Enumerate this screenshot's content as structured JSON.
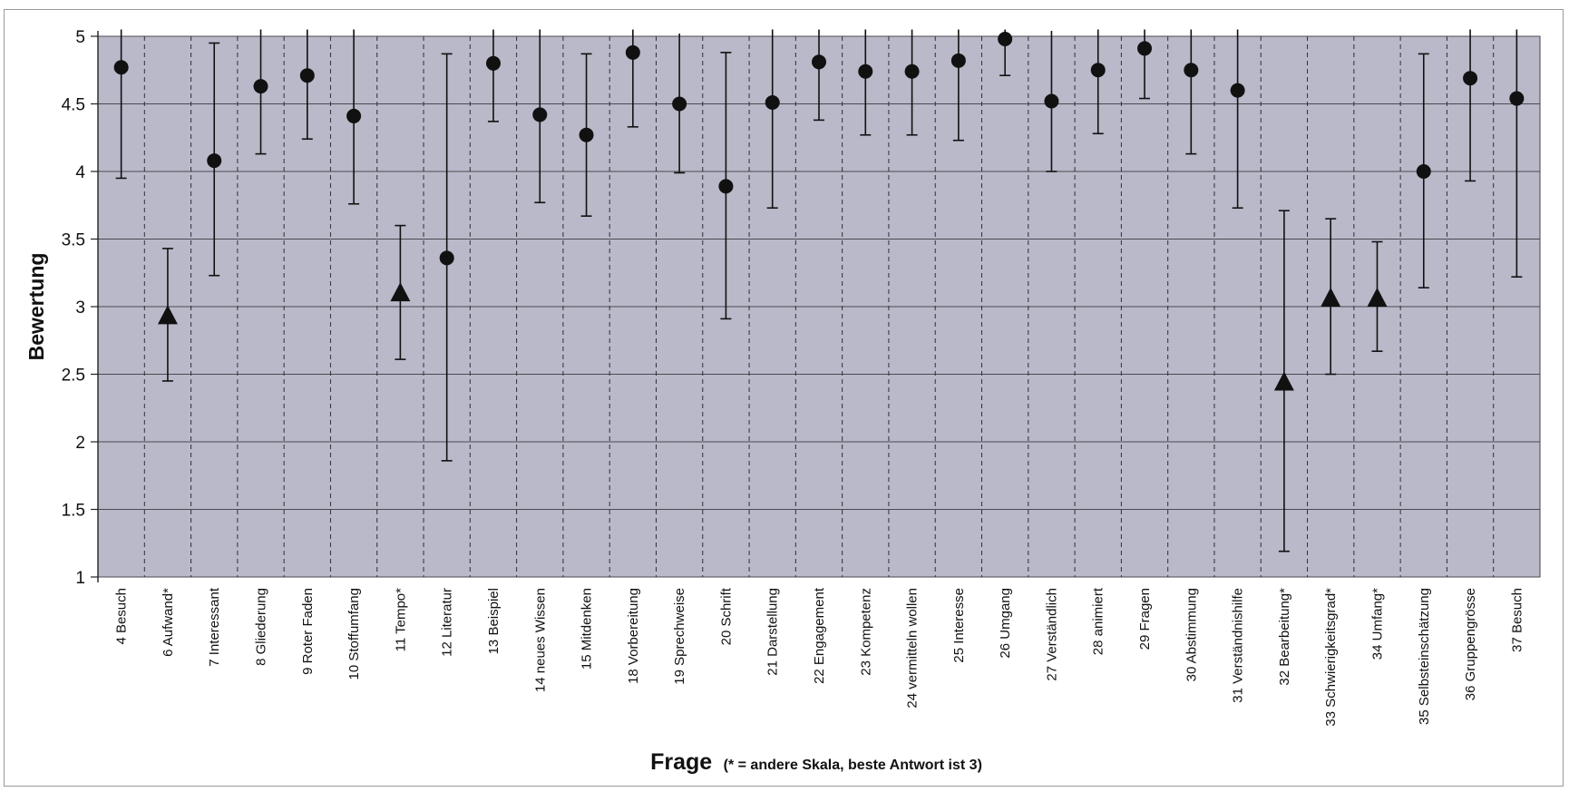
{
  "chart_data": {
    "type": "scatter",
    "ylabel": "Bewertung",
    "xlabel_main": "Frage",
    "xlabel_note": "(* = andere Skala, beste Antwort ist 3)",
    "ylim": [
      1,
      5
    ],
    "yticks": [
      "1",
      "1.5",
      "2",
      "2.5",
      "3",
      "3.5",
      "4",
      "4.5",
      "5"
    ],
    "grid": "horizontal lines and vertical dashed separators",
    "plot_background": "#b9b9c9",
    "marker_color": "#111111",
    "categories": [
      "4 Besuch",
      "6 Aufwand*",
      "7 Interessant",
      "8 Gliederung",
      "9 Roter Faden",
      "10 Stoffumfang",
      "11 Tempo*",
      "12 Literatur",
      "13 Beispiel",
      "14 neues Wissen",
      "15 Mitdenken",
      "18 Vorbereitung",
      "19 Sprechweise",
      "20 Schrift",
      "21 Darstellung",
      "22 Engagement",
      "23 Kompetenz",
      "24 vermitteln wollen",
      "25 Interesse",
      "26 Umgang",
      "27 Verständlich",
      "28 animiert",
      "29 Fragen",
      "30 Abstimmung",
      "31 Verständnishilfe",
      "32 Bearbeitung*",
      "33 Schwierigkeitsgrad*",
      "34 Umfang*",
      "35 Selbsteinschätzung",
      "36 Gruppengrösse",
      "37 Besuch"
    ],
    "series": [
      {
        "marker": "circle",
        "values": [
          4.77,
          null,
          4.08,
          4.63,
          4.71,
          4.41,
          null,
          3.36,
          4.8,
          4.42,
          4.27,
          4.88,
          4.5,
          3.89,
          4.51,
          4.81,
          4.74,
          4.74,
          4.82,
          4.98,
          4.52,
          4.75,
          4.91,
          4.75,
          4.6,
          null,
          null,
          null,
          4.0,
          4.69,
          4.54
        ],
        "upper": [
          5.05,
          null,
          4.95,
          5.05,
          5.05,
          5.05,
          null,
          4.87,
          5.05,
          5.05,
          4.87,
          5.05,
          5.02,
          4.88,
          5.05,
          5.05,
          5.05,
          5.05,
          5.05,
          5.05,
          5.04,
          5.05,
          5.05,
          5.05,
          5.05,
          null,
          null,
          null,
          4.87,
          5.05,
          5.05
        ],
        "lower": [
          3.95,
          null,
          3.23,
          4.13,
          4.24,
          3.76,
          null,
          1.86,
          4.37,
          3.77,
          3.67,
          4.33,
          3.99,
          2.91,
          3.73,
          4.38,
          4.27,
          4.27,
          4.23,
          4.71,
          4.0,
          4.28,
          4.54,
          4.13,
          3.73,
          null,
          null,
          null,
          3.14,
          3.93,
          3.22
        ]
      },
      {
        "marker": "triangle",
        "values": [
          null,
          2.93,
          null,
          null,
          null,
          null,
          3.1,
          null,
          null,
          null,
          null,
          null,
          null,
          null,
          null,
          null,
          null,
          null,
          null,
          null,
          null,
          null,
          null,
          null,
          null,
          2.44,
          3.06,
          3.06,
          null,
          null,
          null
        ],
        "upper": [
          null,
          3.43,
          null,
          null,
          null,
          null,
          3.6,
          null,
          null,
          null,
          null,
          null,
          null,
          null,
          null,
          null,
          null,
          null,
          null,
          null,
          null,
          null,
          null,
          null,
          null,
          3.71,
          3.65,
          3.48,
          null,
          null,
          null
        ],
        "lower": [
          null,
          2.45,
          null,
          null,
          null,
          null,
          2.61,
          null,
          null,
          null,
          null,
          null,
          null,
          null,
          null,
          null,
          null,
          null,
          null,
          null,
          null,
          null,
          null,
          null,
          null,
          1.19,
          2.5,
          2.67,
          null,
          null,
          null
        ]
      }
    ]
  }
}
